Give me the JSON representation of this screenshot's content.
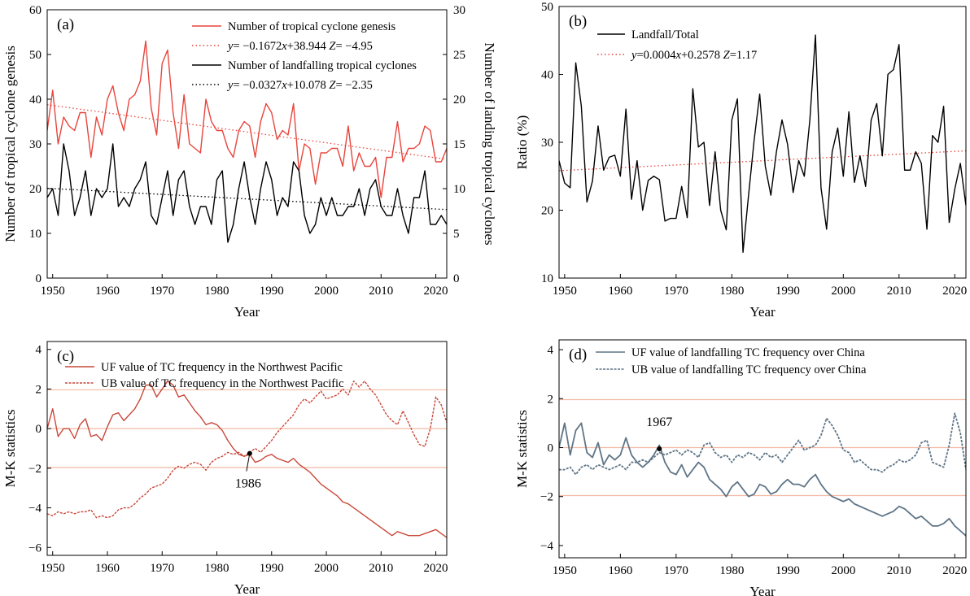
{
  "panels": [
    {
      "id": "a",
      "panel_label": "(a)",
      "xlabel": "Year",
      "ylabel": "Number of tropical cyclone genesis",
      "y2label": "Number of landing tropical cyclones",
      "legend": [
        {
          "label": "Number of tropical cyclone genesis",
          "color": "#e8453c",
          "style": "solid"
        },
        {
          "prefix": "y",
          "label": "= −0.1672",
          "x": "x",
          "rest": "+38.944",
          "zname": "Z",
          "zval": "= −4.95",
          "color": "#e8453c",
          "style": "dotted"
        },
        {
          "label": "Number of landfalling tropical cyclones",
          "color": "#000000",
          "style": "solid"
        },
        {
          "prefix": "y",
          "label": "= −0.0327",
          "x": "x",
          "rest": "+10.078",
          "zname": "Z",
          "zval": "= −2.35",
          "color": "#000000",
          "style": "dotted"
        }
      ]
    },
    {
      "id": "b",
      "panel_label": "(b)",
      "xlabel": "Year",
      "ylabel": "Ratio (%)",
      "legend": [
        {
          "label": "Landfall/Total",
          "color": "#000000",
          "style": "solid"
        },
        {
          "prefix": "y",
          "label": "=0.0004",
          "x": "x",
          "rest": "+0.2578",
          "zname": "Z",
          "zval": "=1.17",
          "color": "#e8453c",
          "style": "dotted"
        }
      ]
    },
    {
      "id": "c",
      "panel_label": "(c)",
      "xlabel": "Year",
      "ylabel": "M-K statistics",
      "annotation": "1986",
      "legend": [
        {
          "label": "UF value of TC frequency in the Northwest Pacific",
          "color": "#c9483a",
          "style": "solid"
        },
        {
          "label": "UB value of TC frequency in the Northwest Pacific",
          "color": "#c9483a",
          "style": "dashed"
        }
      ]
    },
    {
      "id": "d",
      "panel_label": "(d)",
      "xlabel": "Year",
      "ylabel": "M-K statistics",
      "annotation": "1967",
      "legend": [
        {
          "label": "UF value of landfalling TC frequency over China",
          "color": "#5f7587",
          "style": "solid"
        },
        {
          "label": "UB value of landfalling TC frequency over China",
          "color": "#5f7587",
          "style": "dashed"
        }
      ]
    }
  ],
  "chart_data": [
    {
      "type": "line",
      "panel": "a",
      "x": [
        1949,
        1950,
        1951,
        1952,
        1953,
        1954,
        1955,
        1956,
        1957,
        1958,
        1959,
        1960,
        1961,
        1962,
        1963,
        1964,
        1965,
        1966,
        1967,
        1968,
        1969,
        1970,
        1971,
        1972,
        1973,
        1974,
        1975,
        1976,
        1977,
        1978,
        1979,
        1980,
        1981,
        1982,
        1983,
        1984,
        1985,
        1986,
        1987,
        1988,
        1989,
        1990,
        1991,
        1992,
        1993,
        1994,
        1995,
        1996,
        1997,
        1998,
        1999,
        2000,
        2001,
        2002,
        2003,
        2004,
        2005,
        2006,
        2007,
        2008,
        2009,
        2010,
        2011,
        2012,
        2013,
        2014,
        2015,
        2016,
        2017,
        2018,
        2019,
        2020,
        2021,
        2022
      ],
      "xlim": [
        1949,
        2022
      ],
      "xticks": [
        1950,
        1960,
        1970,
        1980,
        1990,
        2000,
        2010,
        2020
      ],
      "ylim": [
        0,
        60
      ],
      "yticks": [
        0,
        10,
        20,
        30,
        40,
        50,
        60
      ],
      "y2lim": [
        0,
        30
      ],
      "y2ticks": [
        0,
        5,
        10,
        15,
        20,
        25,
        30
      ],
      "series": [
        {
          "name": "Number of tropical cyclone genesis",
          "axis": "left",
          "color": "#e8453c",
          "values": [
            33,
            42,
            30,
            36,
            34,
            33,
            37,
            37,
            27,
            36,
            32,
            40,
            43,
            37,
            33,
            40,
            41,
            44,
            53,
            38,
            32,
            48,
            51,
            37,
            29,
            41,
            30,
            29,
            28,
            40,
            35,
            33,
            33,
            29,
            27,
            33,
            35,
            34,
            27,
            35,
            39,
            37,
            31,
            33,
            32,
            39,
            24,
            30,
            29,
            21,
            28,
            28,
            29,
            29,
            25,
            34,
            24,
            28,
            25,
            25,
            27,
            18,
            27,
            27,
            35,
            26,
            29,
            29,
            30,
            34,
            33,
            26,
            26,
            29
          ]
        },
        {
          "name": "Number of landfalling tropical cyclones",
          "axis": "right",
          "color": "#000000",
          "values": [
            9,
            10,
            7,
            15,
            12,
            7,
            9,
            12,
            7,
            10,
            9,
            10,
            15,
            8,
            9,
            8,
            10,
            11,
            13,
            7,
            6,
            9,
            12,
            7,
            11,
            12,
            8,
            6,
            8,
            8,
            6,
            11,
            12,
            4,
            6,
            10,
            13,
            9,
            6,
            10,
            13,
            11,
            7,
            9,
            8,
            13,
            12,
            7,
            5,
            6,
            9,
            7,
            9,
            7,
            7,
            8,
            8,
            10,
            7,
            10,
            11,
            8,
            7,
            7,
            10,
            7,
            5,
            9,
            9,
            12,
            6,
            6,
            7,
            6
          ]
        }
      ],
      "trendlines": [
        {
          "axis": "left",
          "slope": -0.1672,
          "intercept": 38.944,
          "x0": 1949,
          "color": "#e8453c"
        },
        {
          "axis": "right",
          "slope": -0.0327,
          "intercept": 10.078,
          "x0": 1949,
          "color": "#000000"
        }
      ]
    },
    {
      "type": "line",
      "panel": "b",
      "x": [
        1949,
        1950,
        1951,
        1952,
        1953,
        1954,
        1955,
        1956,
        1957,
        1958,
        1959,
        1960,
        1961,
        1962,
        1963,
        1964,
        1965,
        1966,
        1967,
        1968,
        1969,
        1970,
        1971,
        1972,
        1973,
        1974,
        1975,
        1976,
        1977,
        1978,
        1979,
        1980,
        1981,
        1982,
        1983,
        1984,
        1985,
        1986,
        1987,
        1988,
        1989,
        1990,
        1991,
        1992,
        1993,
        1994,
        1995,
        1996,
        1997,
        1998,
        1999,
        2000,
        2001,
        2002,
        2003,
        2004,
        2005,
        2006,
        2007,
        2008,
        2009,
        2010,
        2011,
        2012,
        2013,
        2014,
        2015,
        2016,
        2017,
        2018,
        2019,
        2020,
        2021,
        2022
      ],
      "xlim": [
        1949,
        2022
      ],
      "xticks": [
        1950,
        1960,
        1970,
        1980,
        1990,
        2000,
        2010,
        2020
      ],
      "ylim": [
        10,
        50
      ],
      "yticks": [
        10,
        20,
        30,
        40,
        50
      ],
      "series": [
        {
          "name": "Landfall/Total",
          "color": "#000000",
          "values": [
            27.3,
            24,
            23.3,
            41.7,
            35.3,
            21.2,
            24.3,
            32.4,
            25.9,
            27.8,
            28.1,
            25,
            34.9,
            21.6,
            27.3,
            20,
            24.4,
            25,
            24.5,
            18.4,
            18.8,
            18.8,
            23.5,
            18.9,
            37.9,
            29.3,
            30,
            20.7,
            28.6,
            20,
            17.1,
            33.3,
            36.4,
            13.8,
            22.2,
            30.3,
            37.1,
            26.5,
            22.2,
            28.6,
            33.3,
            29.7,
            22.6,
            27.3,
            25,
            33.3,
            45.8,
            23.3,
            17.2,
            28.6,
            32.1,
            25,
            34.5,
            24.1,
            28,
            23.5,
            33.3,
            35.7,
            28,
            40,
            40.7,
            44.4,
            25.9,
            25.9,
            28.6,
            26.9,
            17.2,
            31,
            30,
            35.3,
            18.2,
            23.1,
            26.9,
            20.7
          ]
        }
      ],
      "trendlines": [
        {
          "slope": 0.0004,
          "intercept": 0.2578,
          "x0": 1949,
          "scale": 100,
          "color": "#e8453c"
        }
      ]
    },
    {
      "type": "line",
      "panel": "c",
      "x": [
        1949,
        1950,
        1951,
        1952,
        1953,
        1954,
        1955,
        1956,
        1957,
        1958,
        1959,
        1960,
        1961,
        1962,
        1963,
        1964,
        1965,
        1966,
        1967,
        1968,
        1969,
        1970,
        1971,
        1972,
        1973,
        1974,
        1975,
        1976,
        1977,
        1978,
        1979,
        1980,
        1981,
        1982,
        1983,
        1984,
        1985,
        1986,
        1987,
        1988,
        1989,
        1990,
        1991,
        1992,
        1993,
        1994,
        1995,
        1996,
        1997,
        1998,
        1999,
        2000,
        2001,
        2002,
        2003,
        2004,
        2005,
        2006,
        2007,
        2008,
        2009,
        2010,
        2011,
        2012,
        2013,
        2014,
        2015,
        2016,
        2017,
        2018,
        2019,
        2020,
        2021,
        2022
      ],
      "xlim": [
        1949,
        2022
      ],
      "xticks": [
        1950,
        1960,
        1970,
        1980,
        1990,
        2000,
        2010,
        2020
      ],
      "ylim": [
        -6.4,
        4.4
      ],
      "yticks": [
        -6,
        -4,
        -2,
        0,
        2,
        4
      ],
      "hlines": [
        1.96,
        0,
        -1.96
      ],
      "series": [
        {
          "name": "UF value of TC frequency in the Northwest Pacific",
          "color": "#c9483a",
          "style": "solid",
          "values": [
            0,
            1,
            -0.4,
            0,
            0,
            -0.5,
            0.2,
            0.5,
            -0.4,
            -0.3,
            -0.6,
            0.1,
            0.7,
            0.8,
            0.4,
            0.7,
            1.0,
            1.5,
            2.2,
            2.2,
            1.6,
            2.0,
            2.4,
            2.2,
            1.6,
            1.7,
            1.3,
            0.9,
            0.6,
            0.2,
            0.3,
            0.2,
            -0.1,
            -0.6,
            -1.0,
            -1.3,
            -1.4,
            -1.3,
            -1.7,
            -1.6,
            -1.4,
            -1.3,
            -1.5,
            -1.6,
            -1.7,
            -1.5,
            -1.8,
            -2.0,
            -2.2,
            -2.5,
            -2.8,
            -3.0,
            -3.2,
            -3.4,
            -3.7,
            -3.8,
            -4.0,
            -4.2,
            -4.4,
            -4.6,
            -4.8,
            -5.0,
            -5.2,
            -5.4,
            -5.2,
            -5.3,
            -5.4,
            -5.4,
            -5.4,
            -5.3,
            -5.2,
            -5.1,
            -5.3,
            -5.5
          ]
        },
        {
          "name": "UB value of TC frequency in the Northwest Pacific",
          "color": "#c9483a",
          "style": "dashed",
          "values": [
            -4.3,
            -4.4,
            -4.2,
            -4.3,
            -4.2,
            -4.3,
            -4.2,
            -4.2,
            -4.1,
            -4.5,
            -4.4,
            -4.5,
            -4.4,
            -4.1,
            -4.0,
            -4.0,
            -3.8,
            -3.5,
            -3.3,
            -3.0,
            -2.9,
            -2.8,
            -2.5,
            -2.1,
            -1.9,
            -2.0,
            -1.8,
            -1.7,
            -1.8,
            -2.1,
            -1.7,
            -1.5,
            -1.4,
            -1.2,
            -1.3,
            -1.2,
            -1.4,
            -1.2,
            -1.0,
            -1.2,
            -0.9,
            -0.6,
            -0.2,
            0.1,
            0.4,
            0.7,
            1.2,
            1.5,
            1.3,
            1.6,
            1.9,
            1.5,
            1.6,
            1.7,
            2.0,
            1.7,
            2.4,
            2.1,
            2.4,
            2.0,
            1.7,
            1.2,
            0.7,
            0.4,
            0.2,
            0.9,
            0.3,
            -0.3,
            -0.8,
            -0.9,
            0,
            1.6,
            1.2,
            0.3
          ]
        }
      ]
    },
    {
      "type": "line",
      "panel": "d",
      "x": [
        1949,
        1950,
        1951,
        1952,
        1953,
        1954,
        1955,
        1956,
        1957,
        1958,
        1959,
        1960,
        1961,
        1962,
        1963,
        1964,
        1965,
        1966,
        1967,
        1968,
        1969,
        1970,
        1971,
        1972,
        1973,
        1974,
        1975,
        1976,
        1977,
        1978,
        1979,
        1980,
        1981,
        1982,
        1983,
        1984,
        1985,
        1986,
        1987,
        1988,
        1989,
        1990,
        1991,
        1992,
        1993,
        1994,
        1995,
        1996,
        1997,
        1998,
        1999,
        2000,
        2001,
        2002,
        2003,
        2004,
        2005,
        2006,
        2007,
        2008,
        2009,
        2010,
        2011,
        2012,
        2013,
        2014,
        2015,
        2016,
        2017,
        2018,
        2019,
        2020,
        2021,
        2022
      ],
      "xlim": [
        1949,
        2022
      ],
      "xticks": [
        1950,
        1960,
        1970,
        1980,
        1990,
        2000,
        2010,
        2020
      ],
      "ylim": [
        -4.5,
        4.4
      ],
      "yticks": [
        -4,
        -2,
        0,
        2,
        4
      ],
      "hlines": [
        1.96,
        0,
        -1.96
      ],
      "series": [
        {
          "name": "UF value of landfalling TC frequency over China",
          "color": "#5f7587",
          "style": "solid",
          "values": [
            0,
            1.0,
            -0.3,
            0.7,
            1.0,
            -0.2,
            -0.4,
            0.2,
            -0.7,
            -0.3,
            -0.5,
            -0.3,
            0.4,
            -0.3,
            -0.6,
            -0.8,
            -0.6,
            -0.3,
            0.1,
            -0.6,
            -1.0,
            -1.1,
            -0.7,
            -1.2,
            -0.9,
            -0.6,
            -0.8,
            -1.3,
            -1.5,
            -1.7,
            -2.0,
            -1.6,
            -1.4,
            -1.7,
            -2.0,
            -1.9,
            -1.5,
            -1.6,
            -1.9,
            -1.8,
            -1.5,
            -1.3,
            -1.5,
            -1.5,
            -1.6,
            -1.3,
            -1.1,
            -1.5,
            -1.8,
            -2.0,
            -2.1,
            -2.2,
            -2.1,
            -2.3,
            -2.4,
            -2.5,
            -2.6,
            -2.7,
            -2.8,
            -2.7,
            -2.6,
            -2.4,
            -2.5,
            -2.7,
            -2.9,
            -2.8,
            -3.0,
            -3.2,
            -3.2,
            -3.1,
            -2.9,
            -3.2,
            -3.4,
            -3.6
          ]
        },
        {
          "name": "UB value of landfalling TC frequency over China",
          "color": "#5f7587",
          "style": "dashed",
          "values": [
            -0.9,
            -0.9,
            -0.8,
            -1.1,
            -0.8,
            -0.7,
            -0.9,
            -0.7,
            -0.8,
            -0.9,
            -0.8,
            -0.7,
            -0.9,
            -0.6,
            -0.6,
            -0.5,
            -0.6,
            -0.4,
            -0.2,
            -0.3,
            -0.2,
            -0.1,
            -0.3,
            -0.1,
            -0.2,
            -0.4,
            0.1,
            0.2,
            -0.2,
            -0.4,
            -0.3,
            -0.6,
            -0.3,
            -0.4,
            -0.2,
            -0.3,
            -0.5,
            -0.2,
            -0.4,
            -0.3,
            -0.6,
            -0.3,
            0,
            0.3,
            -0.1,
            0,
            0.1,
            0.5,
            1.2,
            0.9,
            0.5,
            -0.1,
            -0.2,
            -0.6,
            -0.5,
            -0.7,
            -0.9,
            -0.9,
            -1.0,
            -0.8,
            -0.7,
            -0.5,
            -0.6,
            -0.5,
            -0.3,
            0.2,
            0.3,
            -0.6,
            -0.7,
            -0.8,
            0.1,
            1.4,
            0.6,
            -0.9
          ]
        }
      ]
    }
  ]
}
